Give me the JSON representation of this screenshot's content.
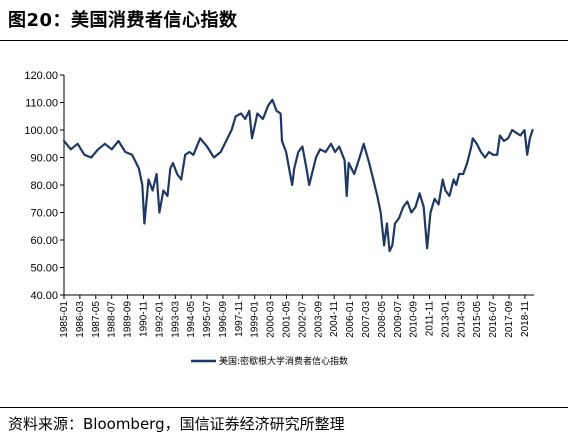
{
  "title": "图20：美国消费者信心指数",
  "source": "资料来源：Bloomberg，国信证券经济研究所整理",
  "chart_data": {
    "type": "line",
    "ylim": [
      40,
      120
    ],
    "yticks": [
      "40.00",
      "50.00",
      "60.00",
      "70.00",
      "80.00",
      "90.00",
      "100.00",
      "110.00",
      "120.00"
    ],
    "xticks": [
      "1985-01",
      "1986-03",
      "1987-05",
      "1988-07",
      "1989-09",
      "1990-11",
      "1992-01",
      "1993-03",
      "1994-05",
      "1995-07",
      "1996-09",
      "1997-11",
      "1999-01",
      "2000-03",
      "2001-05",
      "2002-07",
      "2003-09",
      "2004-11",
      "2006-01",
      "2007-03",
      "2008-05",
      "2009-07",
      "2010-09",
      "2011-11",
      "2013-01",
      "2014-03",
      "2015-05",
      "2016-07",
      "2017-09",
      "2018-11"
    ],
    "grid": false,
    "legend": "bottom-center",
    "series": [
      {
        "name": "美国:密歇根大学消费者信心指数",
        "color": "#1f3864",
        "x": [
          1985.0,
          1985.5,
          1986.0,
          1986.5,
          1987.0,
          1987.5,
          1988.0,
          1988.5,
          1989.0,
          1989.5,
          1990.0,
          1990.5,
          1990.75,
          1990.9,
          1991.2,
          1991.5,
          1991.8,
          1992.0,
          1992.3,
          1992.6,
          1992.8,
          1993.0,
          1993.3,
          1993.6,
          1993.9,
          1994.2,
          1994.5,
          1995.0,
          1995.5,
          1996.0,
          1996.5,
          1997.0,
          1997.3,
          1997.6,
          1998.0,
          1998.3,
          1998.6,
          1998.8,
          1999.2,
          1999.6,
          2000.0,
          2000.3,
          2000.6,
          2000.9,
          2001.0,
          2001.3,
          2001.6,
          2001.75,
          2001.9,
          2002.2,
          2002.5,
          2002.8,
          2003.0,
          2003.2,
          2003.5,
          2003.8,
          2004.2,
          2004.6,
          2004.9,
          2005.2,
          2005.6,
          2005.75,
          2005.9,
          2006.3,
          2006.7,
          2007.0,
          2007.4,
          2007.8,
          2008.0,
          2008.25,
          2008.5,
          2008.7,
          2008.9,
          2009.1,
          2009.3,
          2009.6,
          2009.9,
          2010.2,
          2010.5,
          2010.8,
          2011.1,
          2011.4,
          2011.65,
          2011.9,
          2012.2,
          2012.5,
          2012.8,
          2013.0,
          2013.3,
          2013.6,
          2013.8,
          2014.0,
          2014.3,
          2014.6,
          2014.9,
          2015.0,
          2015.3,
          2015.6,
          2015.9,
          2016.2,
          2016.5,
          2016.8,
          2017.0,
          2017.3,
          2017.6,
          2017.9,
          2018.2,
          2018.5,
          2018.8,
          2019.0,
          2019.2,
          2019.4
        ],
        "values": [
          96,
          93,
          95,
          91,
          90,
          93,
          95,
          93,
          96,
          92,
          91,
          86,
          80,
          66,
          82,
          78,
          84,
          70,
          78,
          76,
          86,
          88,
          84,
          82,
          91,
          92,
          91,
          97,
          94,
          90,
          92,
          97,
          100,
          105,
          106,
          104,
          107,
          97,
          106,
          104,
          109,
          111,
          107,
          106,
          96,
          92,
          84,
          80,
          86,
          92,
          94,
          86,
          80,
          84,
          90,
          93,
          92,
          95,
          92,
          94,
          89,
          76,
          88,
          84,
          90,
          95,
          88,
          80,
          76,
          70,
          58,
          66,
          56,
          58,
          66,
          68,
          72,
          74,
          70,
          72,
          77,
          72,
          57,
          70,
          75,
          73,
          82,
          78,
          76,
          82,
          80,
          84,
          84,
          88,
          94,
          97,
          95,
          92,
          90,
          92,
          91,
          91,
          98,
          96,
          97,
          100,
          99,
          98,
          100,
          91,
          97,
          100
        ]
      }
    ]
  }
}
